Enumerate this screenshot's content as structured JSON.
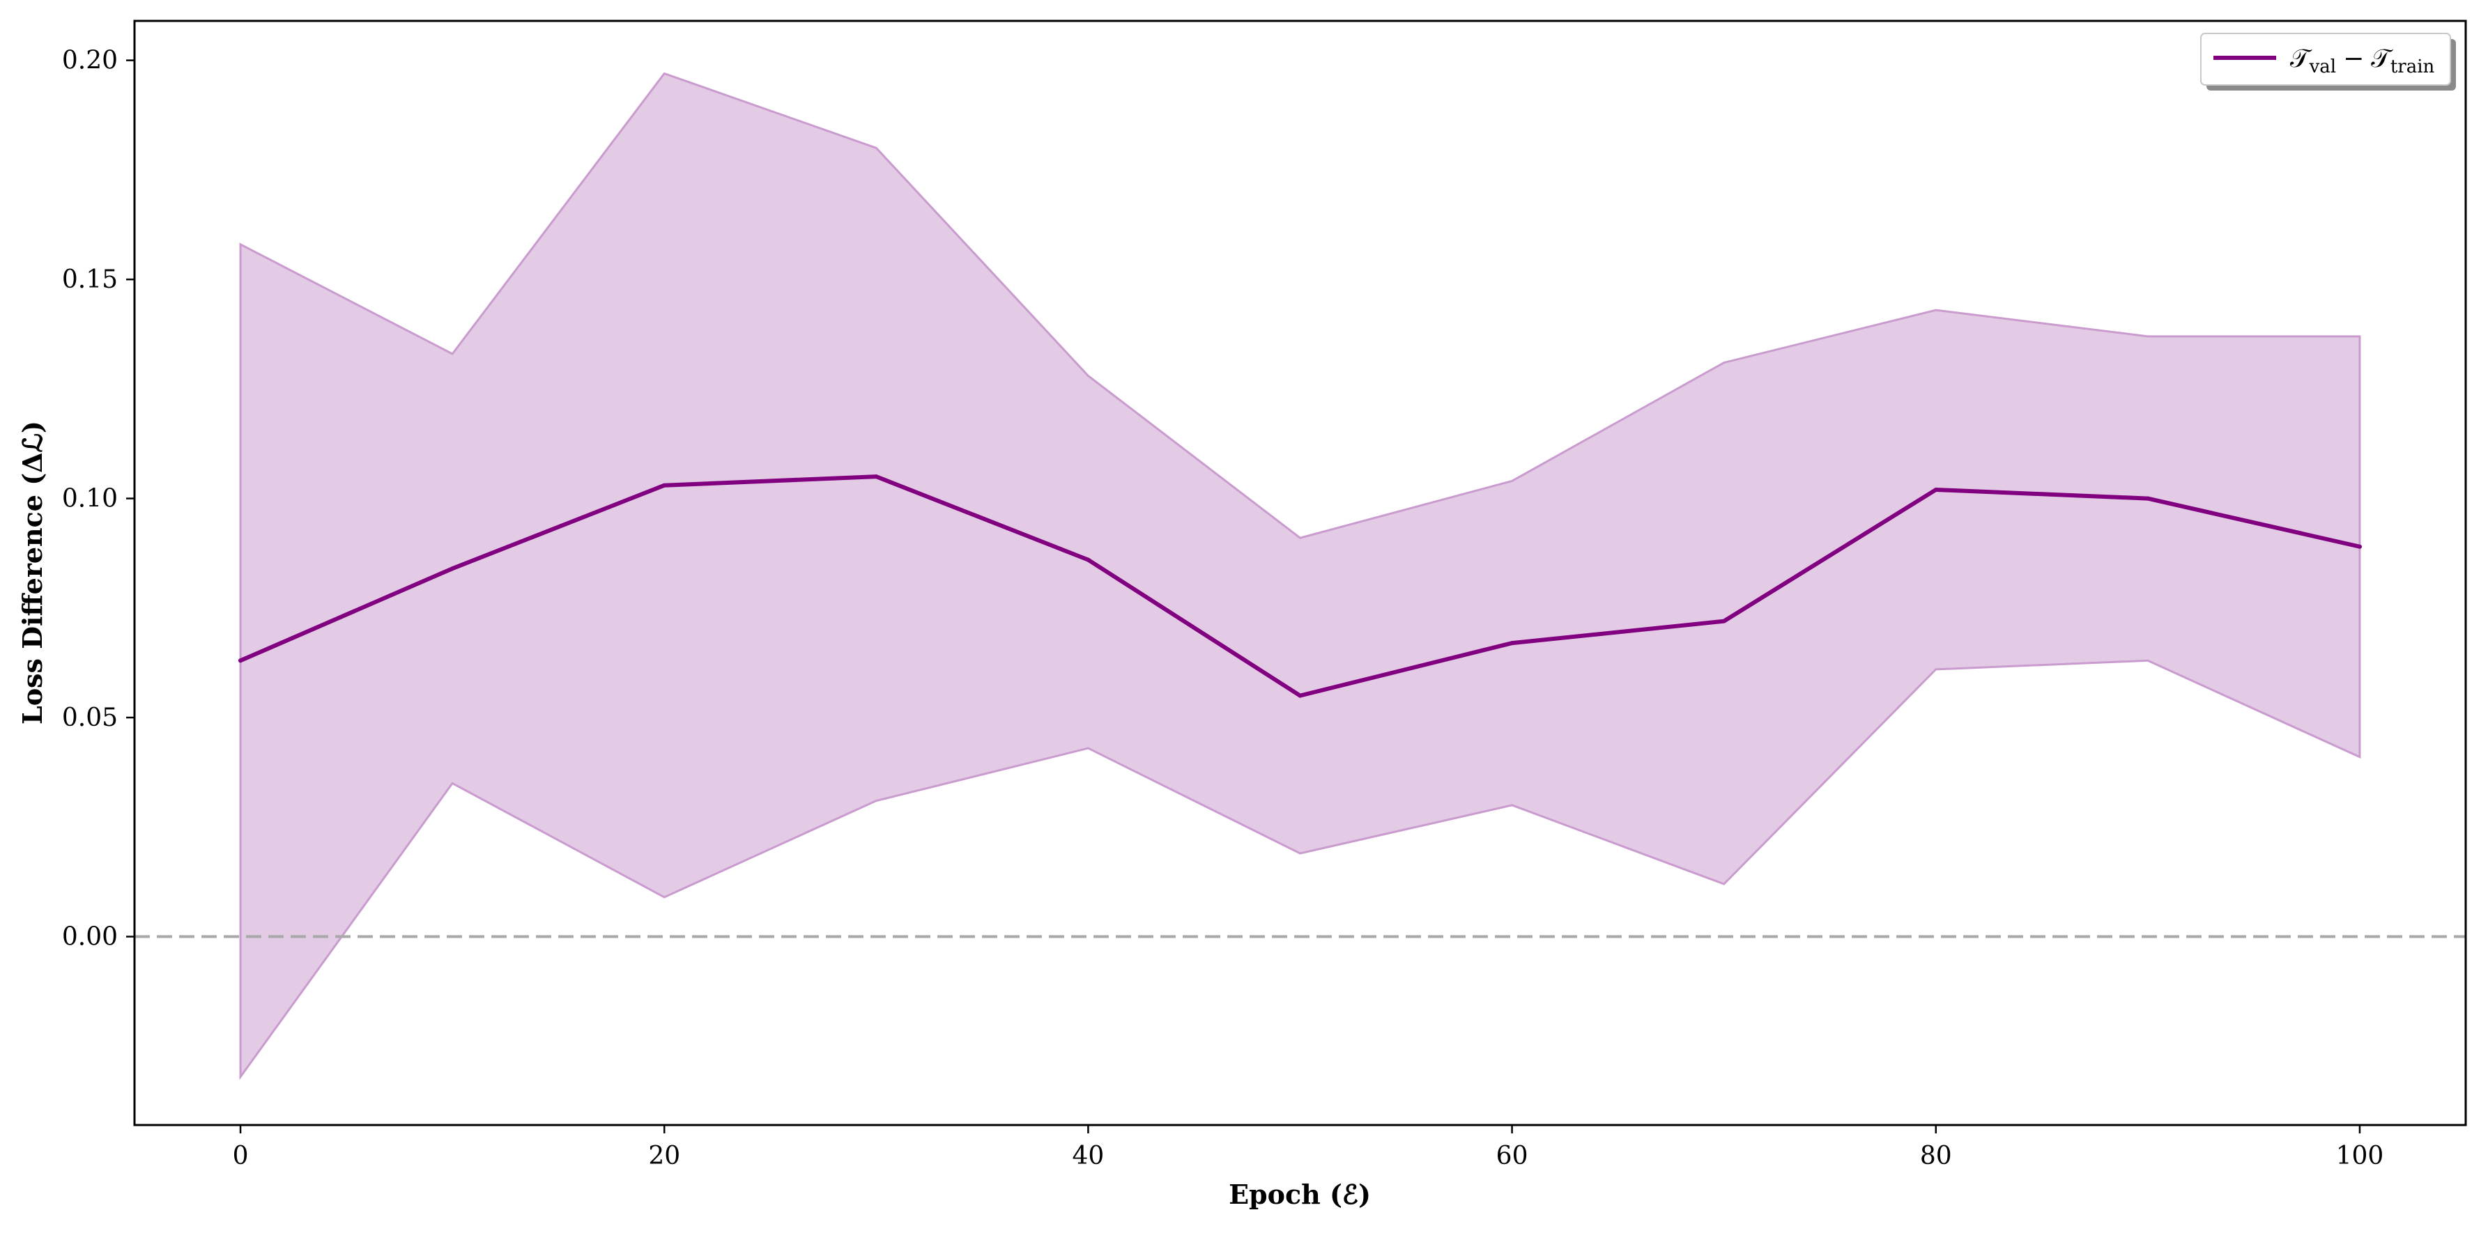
{
  "chart_data": {
    "type": "line",
    "xlabel": "Epoch (ℰ)",
    "ylabel": "Loss Difference (Δℒ)",
    "xlim": [
      -5,
      105
    ],
    "ylim": [
      -0.043,
      0.209
    ],
    "x": [
      0,
      10,
      20,
      30,
      40,
      50,
      60,
      70,
      80,
      90,
      100
    ],
    "xticks": [
      0,
      20,
      40,
      60,
      80,
      100
    ],
    "yticks": [
      0.0,
      0.05,
      0.1,
      0.15,
      0.2
    ],
    "xtick_labels": [
      "0",
      "20",
      "40",
      "60",
      "80",
      "100"
    ],
    "ytick_labels": [
      "0.00",
      "0.05",
      "0.10",
      "0.15",
      "0.20"
    ],
    "series": [
      {
        "legend": {
          "main": "𝒯",
          "sub": "val",
          "sep": "−"
        },
        "legend_second": {
          "main": "𝒯",
          "sub": "train"
        },
        "color": "#800080",
        "values": [
          0.063,
          0.084,
          0.103,
          0.105,
          0.086,
          0.055,
          0.067,
          0.072,
          0.102,
          0.1,
          0.089
        ],
        "band_upper": [
          0.158,
          0.133,
          0.197,
          0.18,
          0.128,
          0.091,
          0.104,
          0.131,
          0.143,
          0.137,
          0.137
        ],
        "band_lower": [
          -0.032,
          0.035,
          0.009,
          0.031,
          0.043,
          0.019,
          0.03,
          0.012,
          0.061,
          0.063,
          0.041
        ],
        "band_color": "#dab9dd"
      }
    ],
    "reference_line": {
      "y": 0.0,
      "style": "dashed",
      "color": "#a9a9a9"
    },
    "grid": false,
    "legend_position": "top-right"
  }
}
